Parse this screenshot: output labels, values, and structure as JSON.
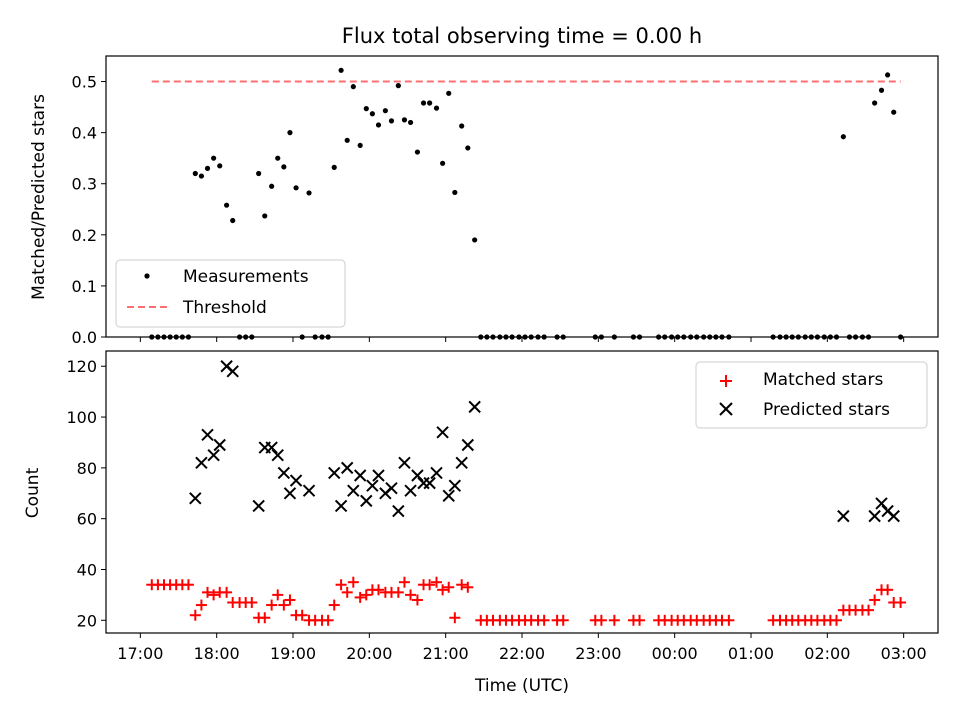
{
  "title": "Flux total observing time = 0.00 h",
  "chart_data": [
    {
      "type": "scatter",
      "panel": "top",
      "title": "Flux total observing time = 0.00 h",
      "xlabel": "",
      "ylabel": "Matched/Predicted stars",
      "xlim": [
        16.55,
        27.45
      ],
      "ylim": [
        0,
        0.55
      ],
      "xticks": [
        17,
        18,
        19,
        20,
        21,
        22,
        23,
        24,
        25,
        26,
        27
      ],
      "xtick_labels": [
        "",
        "",
        "",
        "",
        "",
        "",
        "",
        "",
        "",
        "",
        ""
      ],
      "yticks": [
        0.0,
        0.1,
        0.2,
        0.3,
        0.4,
        0.5
      ],
      "ytick_labels": [
        "0.0",
        "0.1",
        "0.2",
        "0.3",
        "0.4",
        "0.5"
      ],
      "legend_position": "lower-left",
      "series": [
        {
          "name": "Measurements",
          "marker": "dot",
          "color": "#000000",
          "points": [
            [
              17.15,
              0
            ],
            [
              17.23,
              0
            ],
            [
              17.31,
              0
            ],
            [
              17.39,
              0
            ],
            [
              17.47,
              0
            ],
            [
              17.55,
              0
            ],
            [
              17.63,
              0
            ],
            [
              17.72,
              0.32
            ],
            [
              17.8,
              0.315
            ],
            [
              17.88,
              0.33
            ],
            [
              17.96,
              0.35
            ],
            [
              18.04,
              0.335
            ],
            [
              18.13,
              0.258
            ],
            [
              18.21,
              0.228
            ],
            [
              18.3,
              0
            ],
            [
              18.38,
              0
            ],
            [
              18.46,
              0
            ],
            [
              18.55,
              0.32
            ],
            [
              18.63,
              0.237
            ],
            [
              18.72,
              0.295
            ],
            [
              18.8,
              0.35
            ],
            [
              18.88,
              0.333
            ],
            [
              18.96,
              0.4
            ],
            [
              19.04,
              0.292
            ],
            [
              19.12,
              0
            ],
            [
              19.21,
              0.282
            ],
            [
              19.29,
              0
            ],
            [
              19.38,
              0
            ],
            [
              19.46,
              0
            ],
            [
              19.54,
              0.332
            ],
            [
              19.63,
              0.522
            ],
            [
              19.71,
              0.385
            ],
            [
              19.79,
              0.49
            ],
            [
              19.88,
              0.375
            ],
            [
              19.96,
              0.447
            ],
            [
              20.04,
              0.437
            ],
            [
              20.12,
              0.415
            ],
            [
              20.21,
              0.443
            ],
            [
              20.29,
              0.423
            ],
            [
              20.38,
              0.492
            ],
            [
              20.46,
              0.425
            ],
            [
              20.54,
              0.42
            ],
            [
              20.63,
              0.362
            ],
            [
              20.71,
              0.458
            ],
            [
              20.79,
              0.458
            ],
            [
              20.88,
              0.448
            ],
            [
              20.96,
              0.34
            ],
            [
              21.04,
              0.477
            ],
            [
              21.12,
              0.283
            ],
            [
              21.21,
              0.413
            ],
            [
              21.29,
              0.37
            ],
            [
              21.38,
              0.19
            ],
            [
              21.46,
              0
            ],
            [
              21.54,
              0
            ],
            [
              21.62,
              0
            ],
            [
              21.71,
              0
            ],
            [
              21.79,
              0
            ],
            [
              21.87,
              0
            ],
            [
              21.96,
              0
            ],
            [
              22.04,
              0
            ],
            [
              22.12,
              0
            ],
            [
              22.21,
              0
            ],
            [
              22.29,
              0
            ],
            [
              22.46,
              0
            ],
            [
              22.54,
              0
            ],
            [
              22.96,
              0
            ],
            [
              23.04,
              0
            ],
            [
              23.21,
              0
            ],
            [
              23.46,
              0
            ],
            [
              23.54,
              0
            ],
            [
              23.79,
              0
            ],
            [
              23.87,
              0
            ],
            [
              23.96,
              0
            ],
            [
              24.04,
              0
            ],
            [
              24.12,
              0
            ],
            [
              24.21,
              0
            ],
            [
              24.29,
              0
            ],
            [
              24.38,
              0
            ],
            [
              24.46,
              0
            ],
            [
              24.54,
              0
            ],
            [
              24.62,
              0
            ],
            [
              24.71,
              0
            ],
            [
              25.29,
              0
            ],
            [
              25.38,
              0
            ],
            [
              25.46,
              0
            ],
            [
              25.54,
              0
            ],
            [
              25.62,
              0
            ],
            [
              25.71,
              0
            ],
            [
              25.79,
              0
            ],
            [
              25.87,
              0
            ],
            [
              25.96,
              0
            ],
            [
              26.04,
              0
            ],
            [
              26.12,
              0
            ],
            [
              26.21,
              0.392
            ],
            [
              26.29,
              0
            ],
            [
              26.37,
              0
            ],
            [
              26.46,
              0
            ],
            [
              26.54,
              0
            ],
            [
              26.62,
              0.458
            ],
            [
              26.71,
              0.483
            ],
            [
              26.79,
              0.513
            ],
            [
              26.87,
              0.44
            ],
            [
              26.96,
              0
            ]
          ]
        },
        {
          "name": "Threshold",
          "marker": "dashed-line",
          "color": "#ff6f6f",
          "points": [
            [
              17.15,
              0.5
            ],
            [
              26.96,
              0.5
            ]
          ]
        }
      ]
    },
    {
      "type": "scatter",
      "panel": "bottom",
      "title": "",
      "xlabel": "Time (UTC)",
      "ylabel": "Count",
      "xlim": [
        16.55,
        27.45
      ],
      "ylim": [
        15,
        126
      ],
      "xticks": [
        17,
        18,
        19,
        20,
        21,
        22,
        23,
        24,
        25,
        26,
        27
      ],
      "xtick_labels": [
        "17:00",
        "18:00",
        "19:00",
        "20:00",
        "21:00",
        "22:00",
        "23:00",
        "00:00",
        "01:00",
        "02:00",
        "03:00"
      ],
      "yticks": [
        20,
        40,
        60,
        80,
        100,
        120
      ],
      "ytick_labels": [
        "20",
        "40",
        "60",
        "80",
        "100",
        "120"
      ],
      "legend_position": "upper-right",
      "series": [
        {
          "name": "Matched stars",
          "marker": "plus",
          "color": "#ff0000",
          "points": [
            [
              17.15,
              34
            ],
            [
              17.23,
              34
            ],
            [
              17.31,
              34
            ],
            [
              17.39,
              34
            ],
            [
              17.47,
              34
            ],
            [
              17.55,
              34
            ],
            [
              17.63,
              34
            ],
            [
              17.72,
              22
            ],
            [
              17.8,
              26
            ],
            [
              17.88,
              31
            ],
            [
              17.96,
              30
            ],
            [
              18.04,
              31
            ],
            [
              18.13,
              31
            ],
            [
              18.21,
              27
            ],
            [
              18.3,
              27
            ],
            [
              18.38,
              27
            ],
            [
              18.46,
              27
            ],
            [
              18.55,
              21
            ],
            [
              18.63,
              21
            ],
            [
              18.72,
              26
            ],
            [
              18.8,
              30
            ],
            [
              18.88,
              26
            ],
            [
              18.96,
              28
            ],
            [
              19.04,
              22
            ],
            [
              19.12,
              22
            ],
            [
              19.21,
              20
            ],
            [
              19.29,
              20
            ],
            [
              19.38,
              20
            ],
            [
              19.46,
              20
            ],
            [
              19.54,
              26
            ],
            [
              19.63,
              34
            ],
            [
              19.71,
              31
            ],
            [
              19.79,
              35
            ],
            [
              19.88,
              29
            ],
            [
              19.96,
              30
            ],
            [
              20.04,
              32
            ],
            [
              20.12,
              32
            ],
            [
              20.21,
              31
            ],
            [
              20.29,
              31
            ],
            [
              20.38,
              31
            ],
            [
              20.46,
              35
            ],
            [
              20.54,
              30
            ],
            [
              20.63,
              28
            ],
            [
              20.71,
              34
            ],
            [
              20.79,
              34
            ],
            [
              20.88,
              35
            ],
            [
              20.96,
              32
            ],
            [
              21.04,
              33
            ],
            [
              21.12,
              21
            ],
            [
              21.21,
              34
            ],
            [
              21.29,
              33
            ],
            [
              21.46,
              20
            ],
            [
              21.54,
              20
            ],
            [
              21.62,
              20
            ],
            [
              21.71,
              20
            ],
            [
              21.79,
              20
            ],
            [
              21.87,
              20
            ],
            [
              21.96,
              20
            ],
            [
              22.04,
              20
            ],
            [
              22.12,
              20
            ],
            [
              22.21,
              20
            ],
            [
              22.29,
              20
            ],
            [
              22.46,
              20
            ],
            [
              22.54,
              20
            ],
            [
              22.96,
              20
            ],
            [
              23.04,
              20
            ],
            [
              23.21,
              20
            ],
            [
              23.46,
              20
            ],
            [
              23.54,
              20
            ],
            [
              23.79,
              20
            ],
            [
              23.87,
              20
            ],
            [
              23.96,
              20
            ],
            [
              24.04,
              20
            ],
            [
              24.12,
              20
            ],
            [
              24.21,
              20
            ],
            [
              24.29,
              20
            ],
            [
              24.38,
              20
            ],
            [
              24.46,
              20
            ],
            [
              24.54,
              20
            ],
            [
              24.62,
              20
            ],
            [
              24.71,
              20
            ],
            [
              25.29,
              20
            ],
            [
              25.38,
              20
            ],
            [
              25.46,
              20
            ],
            [
              25.54,
              20
            ],
            [
              25.62,
              20
            ],
            [
              25.71,
              20
            ],
            [
              25.79,
              20
            ],
            [
              25.87,
              20
            ],
            [
              25.96,
              20
            ],
            [
              26.04,
              20
            ],
            [
              26.12,
              20
            ],
            [
              26.21,
              24
            ],
            [
              26.29,
              24
            ],
            [
              26.37,
              24
            ],
            [
              26.46,
              24
            ],
            [
              26.54,
              24
            ],
            [
              26.62,
              28
            ],
            [
              26.71,
              32
            ],
            [
              26.79,
              32
            ],
            [
              26.87,
              27
            ],
            [
              26.96,
              27
            ]
          ]
        },
        {
          "name": "Predicted stars",
          "marker": "x",
          "color": "#000000",
          "points": [
            [
              17.72,
              68
            ],
            [
              17.8,
              82
            ],
            [
              17.88,
              93
            ],
            [
              17.96,
              85
            ],
            [
              18.04,
              89
            ],
            [
              18.13,
              120
            ],
            [
              18.21,
              118
            ],
            [
              18.55,
              65
            ],
            [
              18.63,
              88
            ],
            [
              18.72,
              88
            ],
            [
              18.8,
              85
            ],
            [
              18.88,
              78
            ],
            [
              18.96,
              70
            ],
            [
              19.04,
              75
            ],
            [
              19.21,
              71
            ],
            [
              19.54,
              78
            ],
            [
              19.63,
              65
            ],
            [
              19.71,
              80
            ],
            [
              19.79,
              71
            ],
            [
              19.88,
              77
            ],
            [
              19.96,
              67
            ],
            [
              20.04,
              73
            ],
            [
              20.12,
              77
            ],
            [
              20.21,
              70
            ],
            [
              20.29,
              72
            ],
            [
              20.38,
              63
            ],
            [
              20.46,
              82
            ],
            [
              20.54,
              71
            ],
            [
              20.63,
              77
            ],
            [
              20.71,
              74
            ],
            [
              20.79,
              74
            ],
            [
              20.88,
              78
            ],
            [
              20.96,
              94
            ],
            [
              21.04,
              69
            ],
            [
              21.12,
              73
            ],
            [
              21.21,
              82
            ],
            [
              21.29,
              89
            ],
            [
              21.38,
              104
            ],
            [
              26.21,
              61
            ],
            [
              26.62,
              61
            ],
            [
              26.71,
              66
            ],
            [
              26.79,
              63
            ],
            [
              26.87,
              61
            ]
          ]
        }
      ]
    }
  ]
}
